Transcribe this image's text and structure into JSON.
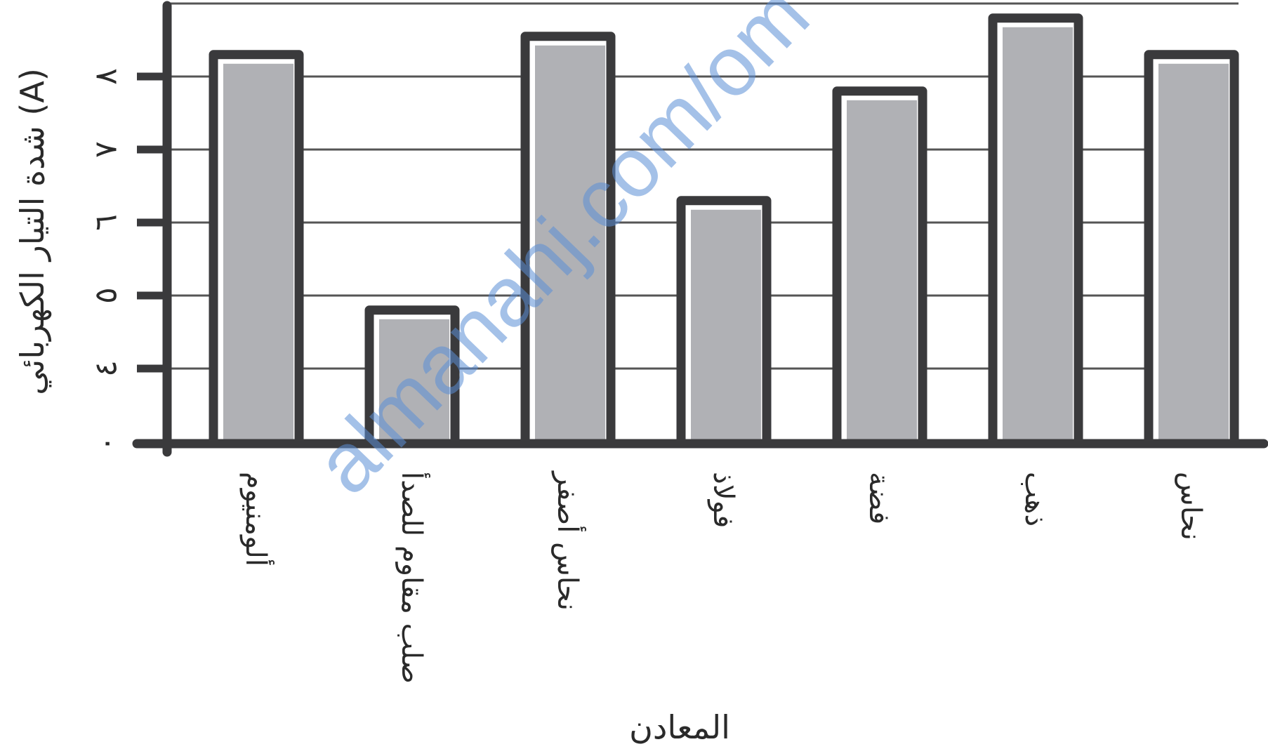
{
  "chart_data": {
    "type": "bar",
    "title": "",
    "xlabel": "المعادن",
    "ylabel": "شدة التيار الكهربائي (A)",
    "categories": [
      "ألومنيوم",
      "صلب مقاوم للصدأ",
      "نحاس أصفر",
      "فولاذ",
      "فضة",
      "ذهب",
      "نحاس"
    ],
    "values": [
      8.3,
      4.8,
      8.55,
      6.3,
      7.8,
      8.8,
      8.3
    ],
    "yticks": [
      {
        "value": 0,
        "label": "٠"
      },
      {
        "value": 4,
        "label": "٤"
      },
      {
        "value": 5,
        "label": "٥"
      },
      {
        "value": 6,
        "label": "٦"
      },
      {
        "value": 7,
        "label": "٧"
      },
      {
        "value": 8,
        "label": "٨"
      }
    ],
    "ylim": [
      0,
      9
    ],
    "axis_break": true,
    "grid": true,
    "colors": {
      "bar_fill": "#b0b1b5",
      "bar_outline": "#3a3a3c",
      "grid": "#555555",
      "axis": "#3a3a3c"
    }
  },
  "watermark": "almanahj.com/om"
}
